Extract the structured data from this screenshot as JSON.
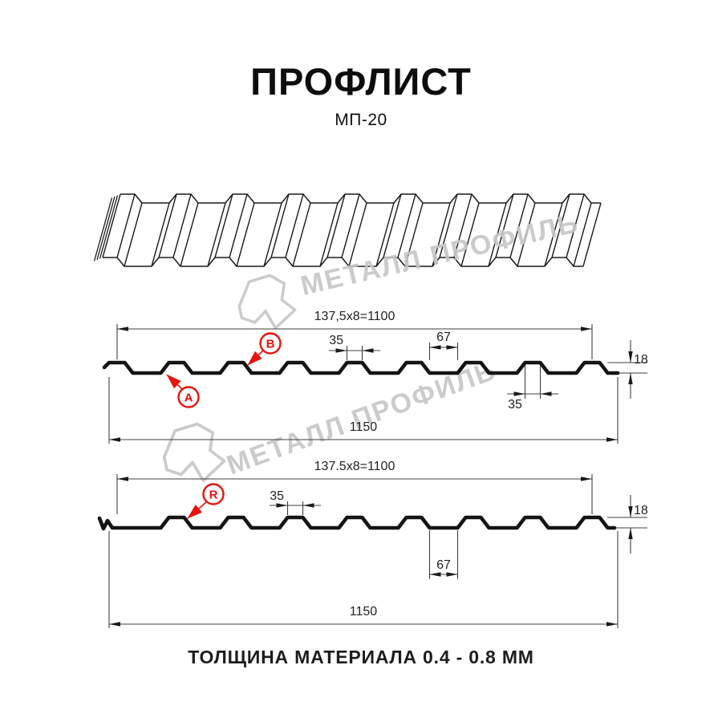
{
  "page": {
    "title": "ПРОФЛИСТ",
    "subtitle": "МП-20",
    "footer": "ТОЛЩИНА МАТЕРИАЛА 0.4 - 0.8 ММ"
  },
  "watermark": {
    "brand": "МЕТАЛЛ ПРОФИЛЬ"
  },
  "colors": {
    "accent_red": "#e8130c",
    "dim_line": "#3f3f3f",
    "profile_stroke": "#141414",
    "watermark_gray": "#c6c6c6"
  },
  "diagram": {
    "section_top": {
      "pitch_dim": "137,5x8=1100",
      "overall_width": "1150",
      "rib_top_width": "35",
      "valley_width": "67",
      "height": "18",
      "rib_bottom_width": "35",
      "point_labels": {
        "a": "A",
        "b": "B"
      }
    },
    "section_bottom": {
      "pitch_dim": "137.5x8=1100",
      "overall_width": "1150",
      "rib_top_width": "35",
      "valley_width": "67",
      "height": "18",
      "point_labels": {
        "r": "R"
      }
    }
  }
}
